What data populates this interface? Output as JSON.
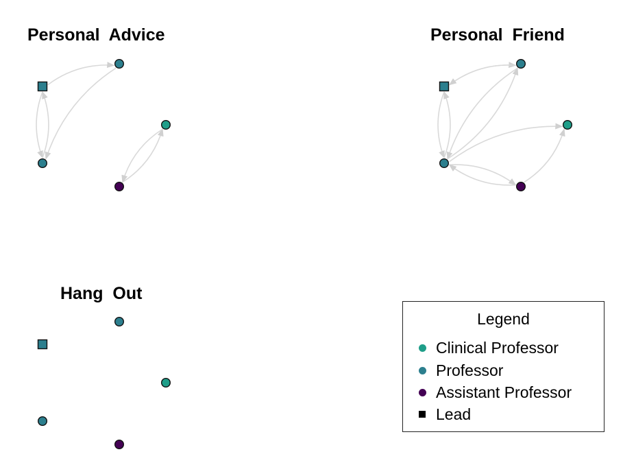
{
  "panels": [
    {
      "title": "Personal  Advice",
      "nodes": [
        {
          "id": "lead",
          "role": "lead"
        },
        {
          "id": "p1",
          "role": "professor"
        },
        {
          "id": "p2",
          "role": "professor"
        },
        {
          "id": "c1",
          "role": "clinical"
        },
        {
          "id": "a1",
          "role": "assistant"
        }
      ],
      "edges": [
        [
          "lead",
          "p1"
        ],
        [
          "lead",
          "p2"
        ],
        [
          "p2",
          "lead"
        ],
        [
          "p1",
          "p2"
        ],
        [
          "a1",
          "c1"
        ],
        [
          "c1",
          "a1"
        ]
      ]
    },
    {
      "title": "Personal  Friend",
      "nodes": [
        {
          "id": "lead",
          "role": "lead"
        },
        {
          "id": "p1",
          "role": "professor"
        },
        {
          "id": "p2",
          "role": "professor"
        },
        {
          "id": "c1",
          "role": "clinical"
        },
        {
          "id": "a1",
          "role": "assistant"
        }
      ],
      "edges": [
        [
          "lead",
          "p1"
        ],
        [
          "p1",
          "lead"
        ],
        [
          "lead",
          "p2"
        ],
        [
          "p2",
          "lead"
        ],
        [
          "p1",
          "p2"
        ],
        [
          "p2",
          "p1"
        ],
        [
          "p2",
          "c1"
        ],
        [
          "a1",
          "c1"
        ],
        [
          "p2",
          "a1"
        ],
        [
          "a1",
          "p2"
        ]
      ]
    },
    {
      "title": "Hang  Out",
      "nodes": [
        {
          "id": "lead",
          "role": "lead"
        },
        {
          "id": "p1",
          "role": "professor"
        },
        {
          "id": "p2",
          "role": "professor"
        },
        {
          "id": "c1",
          "role": "clinical"
        },
        {
          "id": "a1",
          "role": "assistant"
        }
      ],
      "edges": []
    }
  ],
  "legend": {
    "title": "Legend",
    "items": [
      {
        "label": "Clinical Professor",
        "symbol": "circle",
        "color": "#1f9e89"
      },
      {
        "label": "Professor",
        "symbol": "circle",
        "color": "#2c7f8e"
      },
      {
        "label": "Assistant Professor",
        "symbol": "circle",
        "color": "#440154"
      },
      {
        "label": "Lead",
        "symbol": "square",
        "color": "#000000"
      }
    ]
  },
  "colors": {
    "clinical": "#1f9e89",
    "professor": "#2c7f8e",
    "assistant": "#440154",
    "lead": "#2c7f8e",
    "edge": "#d9d9d9"
  }
}
